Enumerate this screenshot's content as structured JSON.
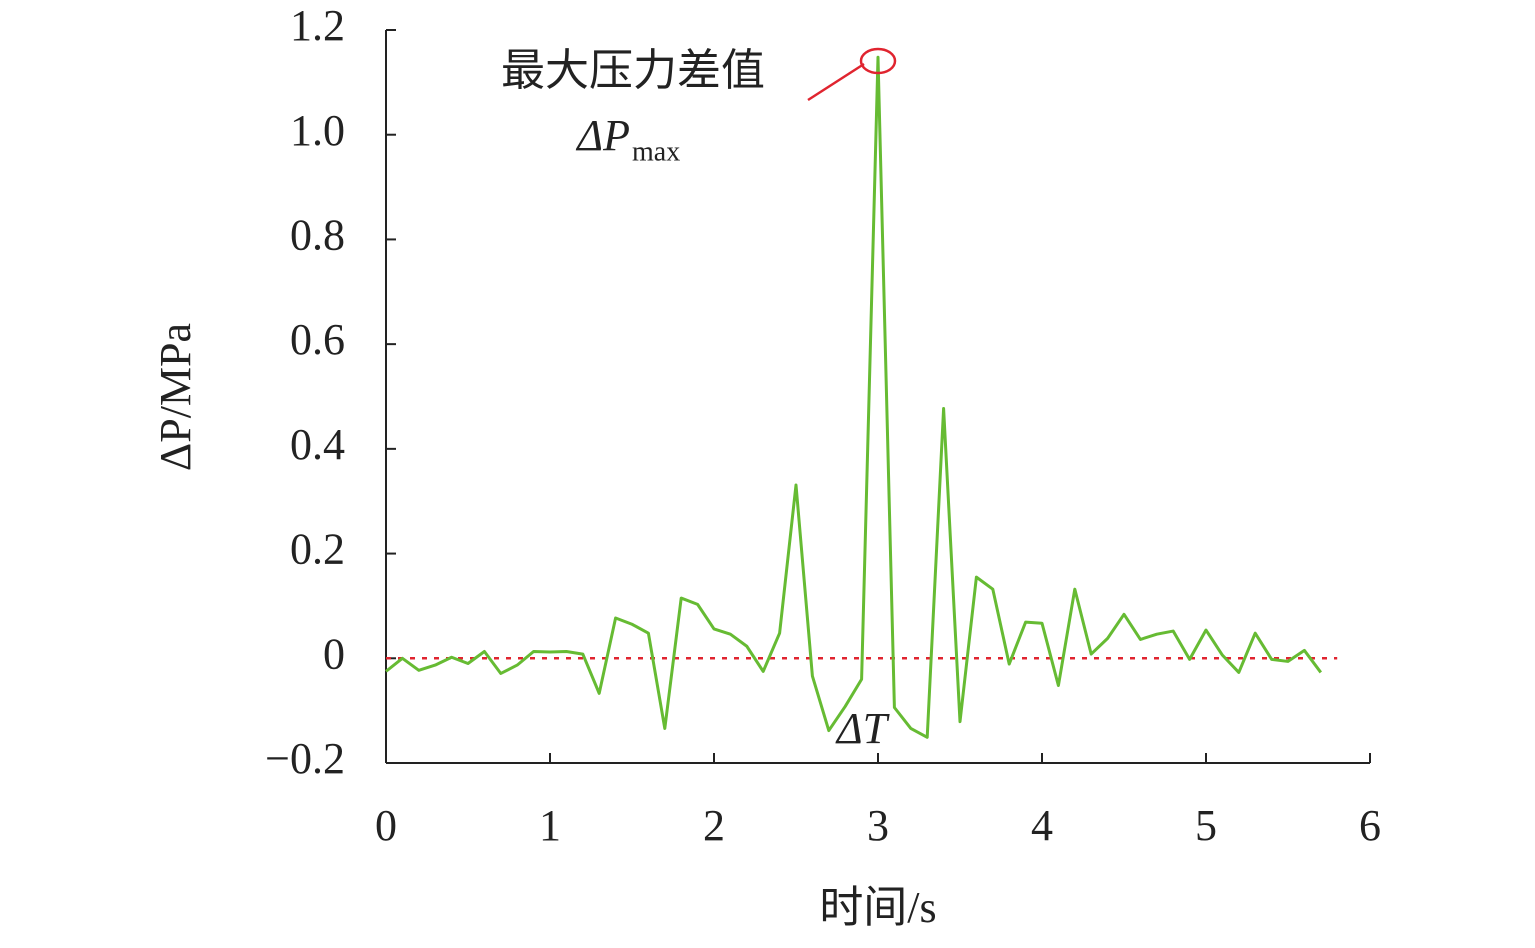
{
  "chart_data": {
    "type": "line",
    "ylabel": "ΔP/MPa",
    "xlabel": "时间/s",
    "x": [
      0,
      0.1,
      0.2,
      0.3,
      0.4,
      0.5,
      0.6,
      0.7,
      0.8,
      0.9,
      1.0,
      1.1,
      1.2,
      1.3,
      1.4,
      1.5,
      1.6,
      1.7,
      1.8,
      1.9,
      2.0,
      2.1,
      2.2,
      2.3,
      2.4,
      2.5,
      2.6,
      2.7,
      2.8,
      2.9,
      3.0,
      3.1,
      3.2,
      3.3,
      3.4,
      3.5,
      3.6,
      3.7,
      3.8,
      3.9,
      4.0,
      4.1,
      4.2,
      4.3,
      4.4,
      4.5,
      4.6,
      4.7,
      4.8,
      4.9,
      5.0,
      5.1,
      5.2,
      5.3,
      5.4,
      5.5,
      5.6,
      5.7
    ],
    "series": [
      {
        "color": "#66bb33",
        "values": [
          -0.025,
          0,
          -0.023,
          -0.013,
          0.002,
          -0.01,
          0.013,
          -0.029,
          -0.013,
          0.013,
          0.012,
          0.013,
          0.008,
          -0.067,
          0.077,
          0.065,
          0.048,
          -0.134,
          0.115,
          0.103,
          0.056,
          0.046,
          0.023,
          -0.025,
          0.048,
          0.331,
          -0.034,
          -0.138,
          -0.092,
          -0.04,
          1.148,
          -0.094,
          -0.134,
          -0.151,
          0.477,
          -0.121,
          0.155,
          0.132,
          -0.011,
          0.069,
          0.067,
          -0.052,
          0.132,
          0.008,
          0.038,
          0.084,
          0.036,
          0.046,
          0.052,
          -0.002,
          0.054,
          0.006,
          -0.027,
          0.048,
          -0.002,
          -0.006,
          0.015,
          -0.027
        ]
      }
    ],
    "reference_line": {
      "y": 0,
      "x": [
        0,
        5.8
      ],
      "color": "#e0242f"
    },
    "xlim": [
      0,
      6
    ],
    "xticks": [
      0,
      1,
      2,
      3,
      4,
      5,
      6
    ],
    "ylim": [
      -0.2,
      1.2
    ],
    "yticks": [
      {
        "value": -0.2,
        "label": "−0.2"
      },
      0,
      0.2,
      0.4,
      0.6,
      0.8,
      {
        "value": 1,
        "label": "1.0"
      },
      1.2
    ],
    "annotations": {
      "peak_label": "最大压力差值",
      "peak_symbol": "ΔP",
      "peak_subscript": "max",
      "interval_label": "ΔT"
    },
    "highlight_color": "#e0242f"
  }
}
